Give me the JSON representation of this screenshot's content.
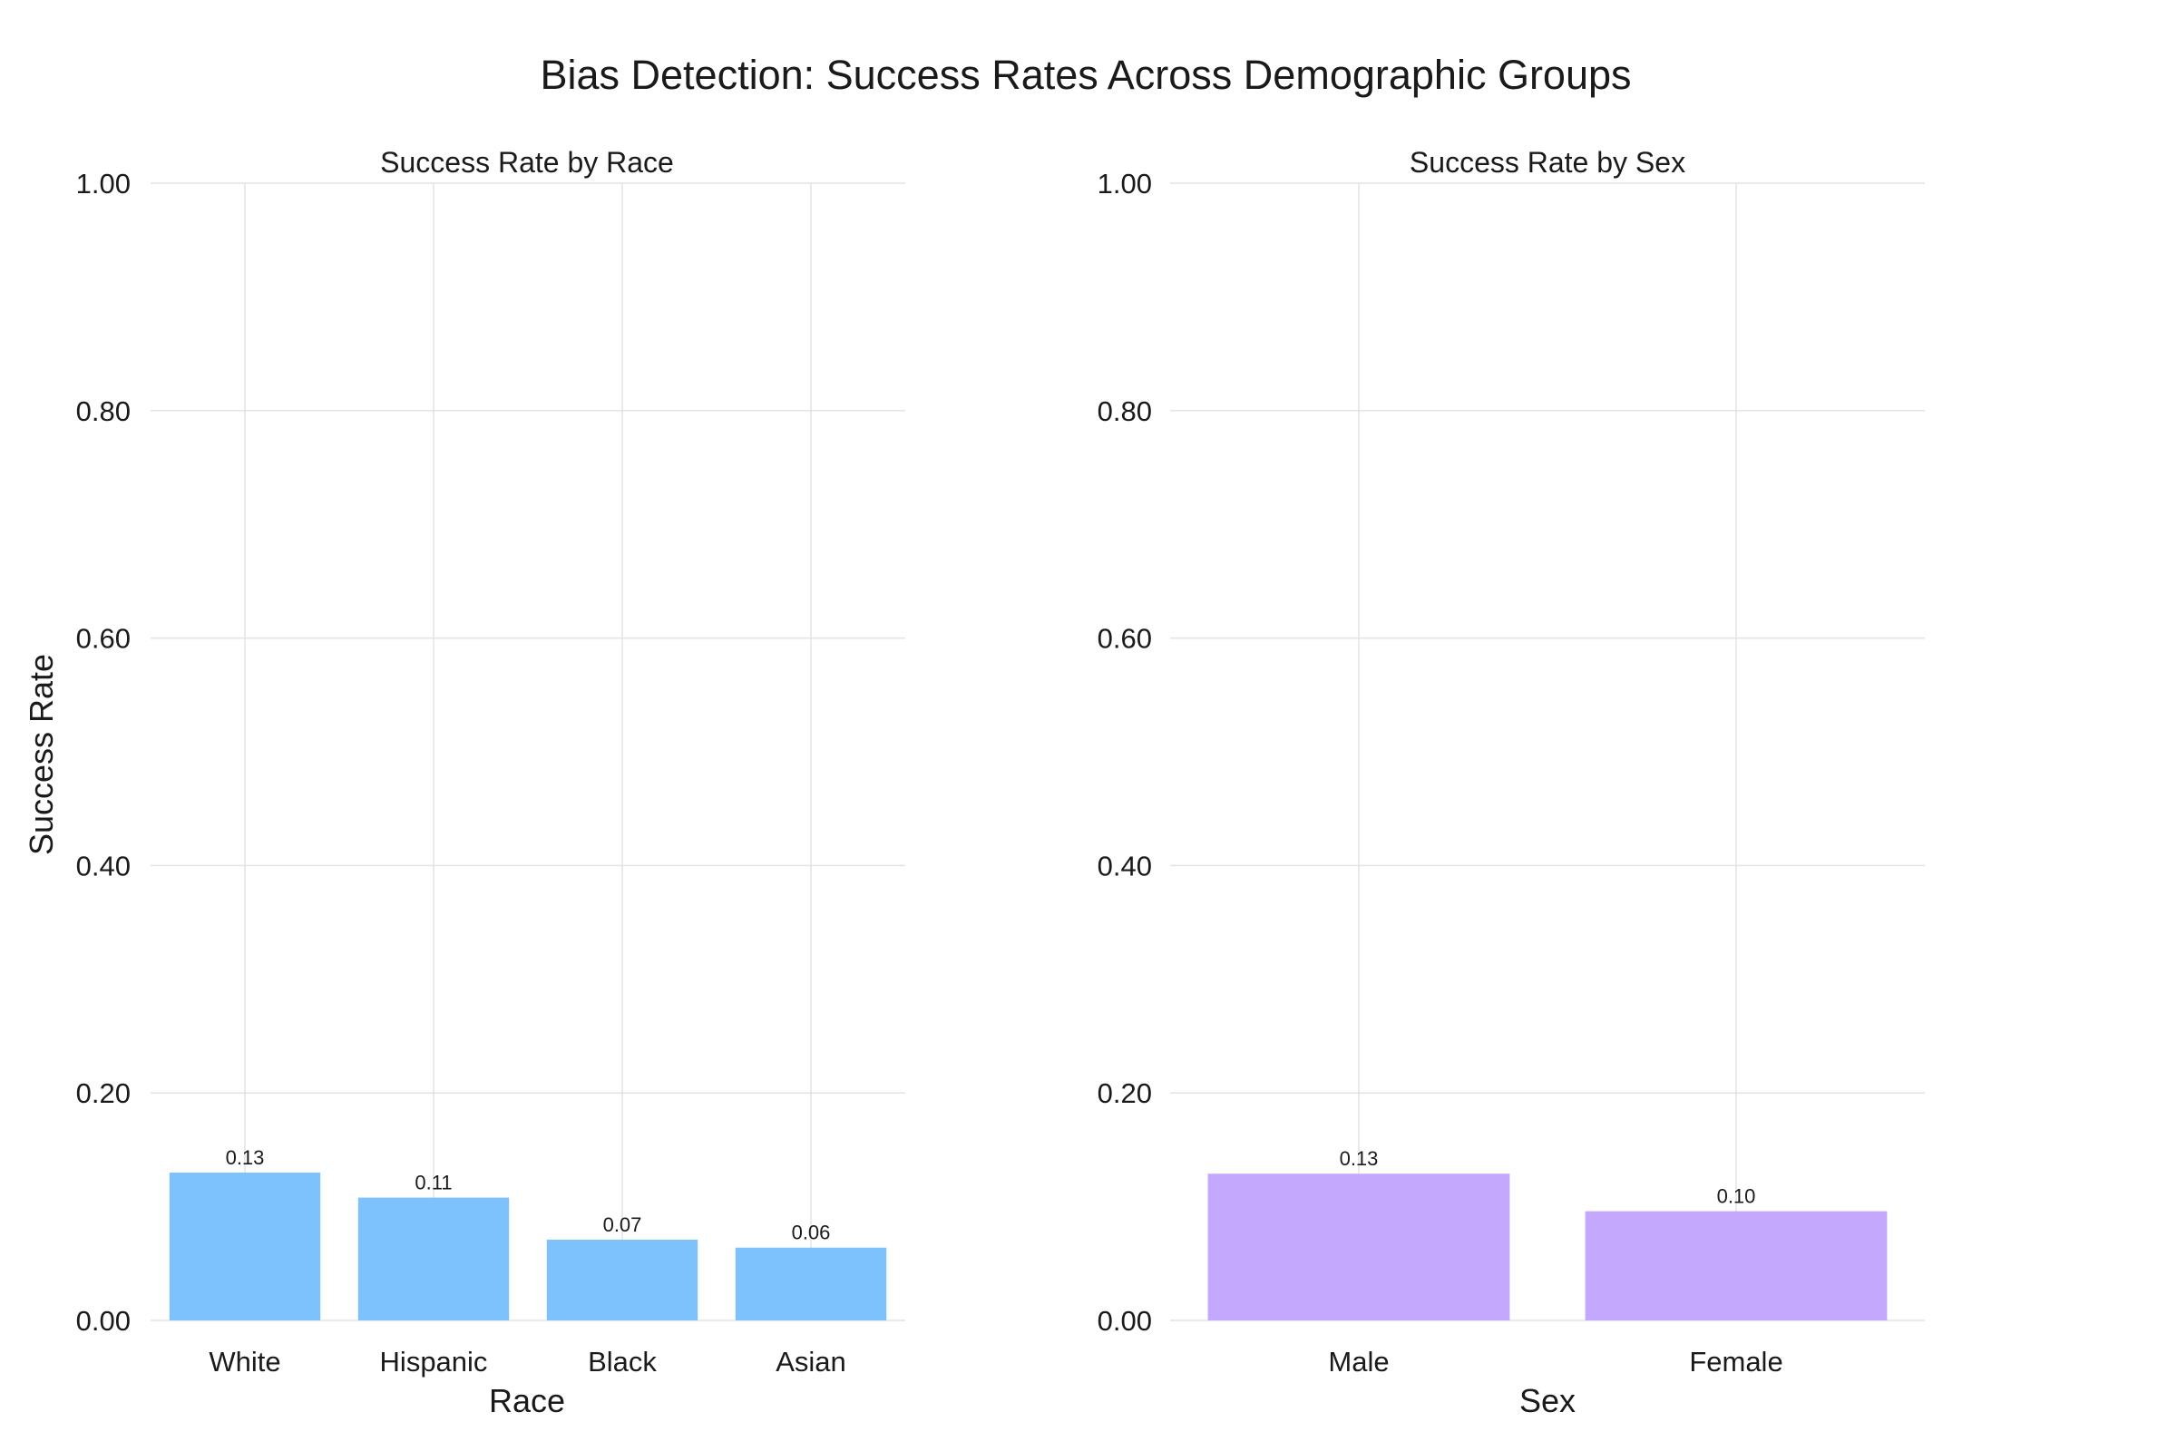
{
  "title": "Bias Detection: Success Rates Across Demographic Groups",
  "chart_data": [
    {
      "type": "bar",
      "title": "Success Rate by Race",
      "xlabel": "Race",
      "ylabel": "Success Rate",
      "ylim": [
        0,
        1
      ],
      "yticks": [
        "0.00",
        "0.20",
        "0.40",
        "0.60",
        "0.80",
        "1.00"
      ],
      "grid": true,
      "categories": [
        "White",
        "Hispanic",
        "Black",
        "Asian"
      ],
      "values": [
        0.13,
        0.108,
        0.071,
        0.064
      ],
      "value_labels": [
        "0.13",
        "0.11",
        "0.07",
        "0.06"
      ],
      "color": "#7dc1fd"
    },
    {
      "type": "bar",
      "title": "Success Rate by Sex",
      "xlabel": "Sex",
      "ylabel": "",
      "ylim": [
        0,
        1
      ],
      "yticks": [
        "0.00",
        "0.20",
        "0.40",
        "0.60",
        "0.80",
        "1.00"
      ],
      "grid": true,
      "categories": [
        "Male",
        "Female"
      ],
      "values": [
        0.129,
        0.096
      ],
      "value_labels": [
        "0.13",
        "0.10"
      ],
      "color": "#c3a8fd"
    }
  ]
}
